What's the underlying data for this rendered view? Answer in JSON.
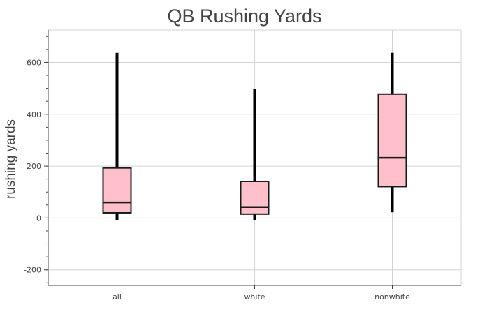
{
  "chart_data": {
    "type": "box",
    "title": "QB Rushing Yards",
    "xlabel": "",
    "ylabel": "rushing yards",
    "categories": [
      "all",
      "white",
      "nonwhite"
    ],
    "ylim": [
      -260,
      725
    ],
    "yticks": [
      -200,
      0,
      200,
      400,
      600
    ],
    "ytick_labels": [
      "-200",
      "0",
      "200",
      "400",
      "600"
    ],
    "grid": true,
    "boxes": [
      {
        "category": "all",
        "whisker_low": -8,
        "q1": 20,
        "median": 60,
        "q3": 193,
        "whisker_high": 637
      },
      {
        "category": "white",
        "whisker_low": -8,
        "q1": 15,
        "median": 42,
        "q3": 141,
        "whisker_high": 497
      },
      {
        "category": "nonwhite",
        "whisker_low": 22,
        "q1": 121,
        "median": 232,
        "q3": 478,
        "whisker_high": 637
      }
    ],
    "colors": {
      "box_fill": "#ffc0cb",
      "box_stroke": "#1a1a1a",
      "whisker": "#000000",
      "grid": "#d3d3d3",
      "axis": "#444444"
    }
  }
}
